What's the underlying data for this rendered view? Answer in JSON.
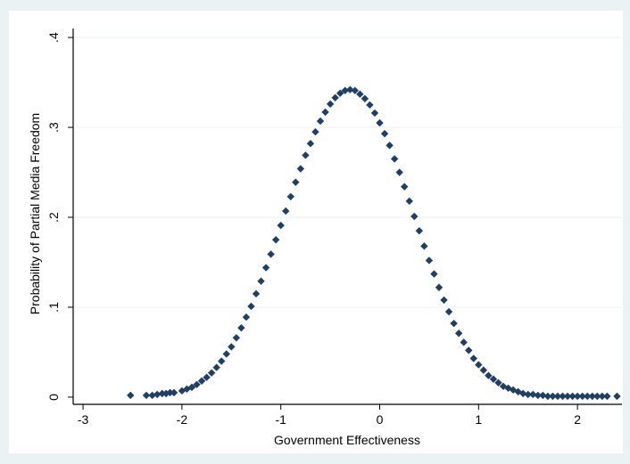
{
  "chart_data": {
    "type": "scatter",
    "title": "",
    "xlabel": "Government Effectiveness",
    "ylabel": "Probability of Partial Media Freedom",
    "xlim": [
      -3.1,
      2.45
    ],
    "ylim": [
      -0.008,
      0.41
    ],
    "x_ticks": [
      -3,
      -2,
      -1,
      0,
      1,
      2
    ],
    "x_tick_labels": [
      "-3",
      "-2",
      "-1",
      "0",
      "1",
      "2"
    ],
    "y_ticks": [
      0,
      0.1,
      0.2,
      0.3,
      0.4
    ],
    "y_tick_labels": [
      "0",
      ".1",
      ".2",
      ".3",
      ".4"
    ],
    "grid": "horizontal",
    "legend": "none",
    "colors": {
      "background": "#eaf2f3",
      "plot_area": "#ffffff",
      "grid": "#eaf2f3",
      "marker": "#1f3f66"
    },
    "series": [
      {
        "marker": "diamond",
        "x": [
          -2.52,
          -2.36,
          -2.3,
          -2.25,
          -2.2,
          -2.16,
          -2.12,
          -2.08,
          -2.0,
          -1.95,
          -1.9,
          -1.85,
          -1.8,
          -1.75,
          -1.7,
          -1.65,
          -1.6,
          -1.55,
          -1.5,
          -1.45,
          -1.4,
          -1.35,
          -1.3,
          -1.25,
          -1.2,
          -1.15,
          -1.1,
          -1.05,
          -1.0,
          -0.95,
          -0.9,
          -0.85,
          -0.8,
          -0.75,
          -0.7,
          -0.65,
          -0.6,
          -0.55,
          -0.5,
          -0.45,
          -0.4,
          -0.35,
          -0.3,
          -0.25,
          -0.2,
          -0.15,
          -0.1,
          -0.05,
          0.0,
          0.05,
          0.1,
          0.15,
          0.2,
          0.25,
          0.3,
          0.35,
          0.4,
          0.45,
          0.5,
          0.55,
          0.6,
          0.65,
          0.7,
          0.75,
          0.8,
          0.85,
          0.9,
          0.95,
          1.0,
          1.05,
          1.1,
          1.15,
          1.2,
          1.25,
          1.3,
          1.35,
          1.4,
          1.45,
          1.5,
          1.55,
          1.6,
          1.65,
          1.7,
          1.75,
          1.8,
          1.85,
          1.9,
          1.95,
          2.0,
          2.05,
          2.1,
          2.15,
          2.2,
          2.25,
          2.3,
          2.4
        ],
        "y": [
          0.002,
          0.002,
          0.002,
          0.003,
          0.004,
          0.004,
          0.005,
          0.005,
          0.007,
          0.009,
          0.011,
          0.014,
          0.018,
          0.022,
          0.027,
          0.033,
          0.04,
          0.048,
          0.056,
          0.066,
          0.077,
          0.089,
          0.101,
          0.115,
          0.129,
          0.144,
          0.159,
          0.175,
          0.191,
          0.207,
          0.223,
          0.239,
          0.254,
          0.269,
          0.282,
          0.295,
          0.307,
          0.317,
          0.326,
          0.333,
          0.338,
          0.341,
          0.342,
          0.341,
          0.337,
          0.332,
          0.325,
          0.316,
          0.305,
          0.293,
          0.28,
          0.265,
          0.25,
          0.234,
          0.218,
          0.201,
          0.185,
          0.168,
          0.152,
          0.137,
          0.122,
          0.108,
          0.095,
          0.082,
          0.071,
          0.061,
          0.052,
          0.043,
          0.036,
          0.03,
          0.024,
          0.02,
          0.016,
          0.012,
          0.01,
          0.008,
          0.006,
          0.004,
          0.003,
          0.003,
          0.002,
          0.002,
          0.001,
          0.001,
          0.001,
          0.001,
          0.001,
          0.001,
          0.001,
          0.001,
          0.001,
          0.001,
          0.001,
          0.001,
          0.001,
          0.001
        ]
      }
    ]
  }
}
